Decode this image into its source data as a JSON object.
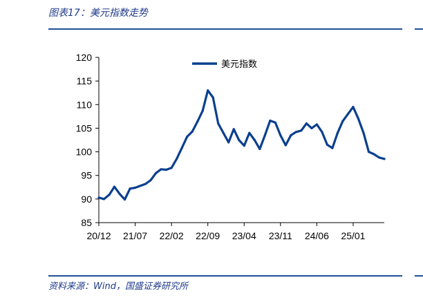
{
  "header": {
    "title": "图表17：美元指数走势"
  },
  "footer": {
    "source": "资料来源：Wind，国盛证券研究所"
  },
  "colors": {
    "series": "#0a3f8f",
    "rule": "#1f4e96",
    "text_accent": "#1f3a8a"
  },
  "chart_data": {
    "type": "line",
    "title": "",
    "xlabel": "",
    "ylabel": "",
    "ylim": [
      85,
      120
    ],
    "yticks": [
      85,
      90,
      95,
      100,
      105,
      110,
      115,
      120
    ],
    "xticks": [
      "20/12",
      "21/07",
      "22/02",
      "22/09",
      "23/04",
      "23/11",
      "24/06",
      "25/01"
    ],
    "legend": {
      "position": "top-center"
    },
    "grid": false,
    "series": [
      {
        "name": "美元指数",
        "x": [
          "2020-12-01",
          "2021-01-01",
          "2021-02-01",
          "2021-03-01",
          "2021-04-01",
          "2021-05-01",
          "2021-06-01",
          "2021-07-01",
          "2021-08-01",
          "2021-09-01",
          "2021-10-01",
          "2021-11-01",
          "2021-12-01",
          "2022-01-01",
          "2022-02-01",
          "2022-03-01",
          "2022-04-01",
          "2022-05-01",
          "2022-06-01",
          "2022-07-01",
          "2022-08-01",
          "2022-09-01",
          "2022-10-01",
          "2022-11-01",
          "2022-12-01",
          "2023-01-01",
          "2023-02-01",
          "2023-03-01",
          "2023-04-01",
          "2023-05-01",
          "2023-06-01",
          "2023-07-01",
          "2023-08-01",
          "2023-09-01",
          "2023-10-01",
          "2023-11-01",
          "2023-12-01",
          "2024-01-01",
          "2024-02-01",
          "2024-03-01",
          "2024-04-01",
          "2024-05-01",
          "2024-06-01",
          "2024-07-01",
          "2024-08-01",
          "2024-09-01",
          "2024-10-01",
          "2024-11-01",
          "2024-12-01",
          "2025-01-01",
          "2025-02-01",
          "2025-03-01",
          "2025-04-01",
          "2025-05-01",
          "2025-06-01",
          "2025-07-01"
        ],
        "values": [
          90.3,
          90.0,
          90.9,
          92.6,
          91.1,
          89.9,
          92.2,
          92.4,
          92.8,
          93.2,
          94.0,
          95.5,
          96.3,
          96.2,
          96.6,
          98.5,
          100.8,
          103.2,
          104.3,
          106.4,
          108.7,
          113.0,
          111.5,
          106.0,
          104.0,
          102.0,
          104.8,
          102.5,
          101.3,
          104.0,
          102.5,
          100.6,
          103.5,
          106.6,
          106.2,
          103.5,
          101.4,
          103.5,
          104.2,
          104.5,
          106.0,
          105.0,
          105.8,
          104.2,
          101.5,
          100.8,
          104.0,
          106.5,
          108.0,
          109.5,
          107.0,
          104.0,
          100.0,
          99.5,
          98.8,
          98.5
        ]
      }
    ]
  }
}
